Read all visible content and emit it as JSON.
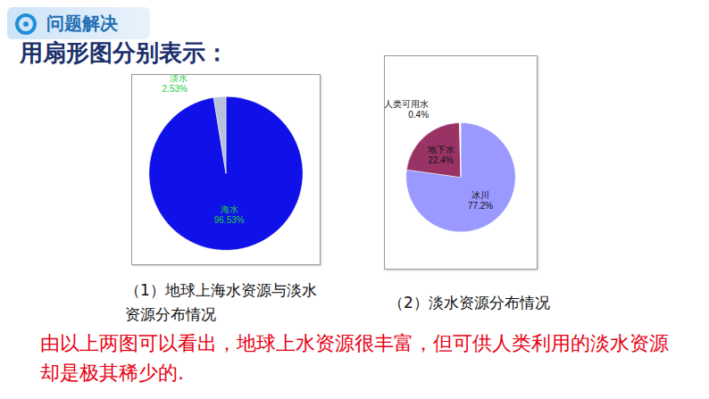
{
  "header": "问题解决",
  "heading": "用扇形图分别表示：",
  "chart_data": [
    {
      "type": "pie",
      "title": "（1）地球上海水资源与淡水资源分布情况",
      "categories": [
        "海水",
        "淡水"
      ],
      "values": [
        96.53,
        2.53
      ],
      "value_labels": [
        "96.53%",
        "2.53%"
      ],
      "colors": [
        "#1010e8",
        "#b8c0dc"
      ],
      "data_labels": true
    },
    {
      "type": "pie",
      "title": "（2）淡水资源分布情况",
      "categories": [
        "冰川",
        "地下水",
        "人类可用水"
      ],
      "values": [
        77.2,
        22.4,
        0.4
      ],
      "value_labels": [
        "77.2%",
        "22.4%",
        "0.4%"
      ],
      "colors": [
        "#9999ff",
        "#993366",
        "#ffffcc"
      ],
      "data_labels": true
    }
  ],
  "conclusion": "由以上两图可以看出，地球上水资源很丰富，但可供人类利用的淡水资源却是极其稀少的."
}
